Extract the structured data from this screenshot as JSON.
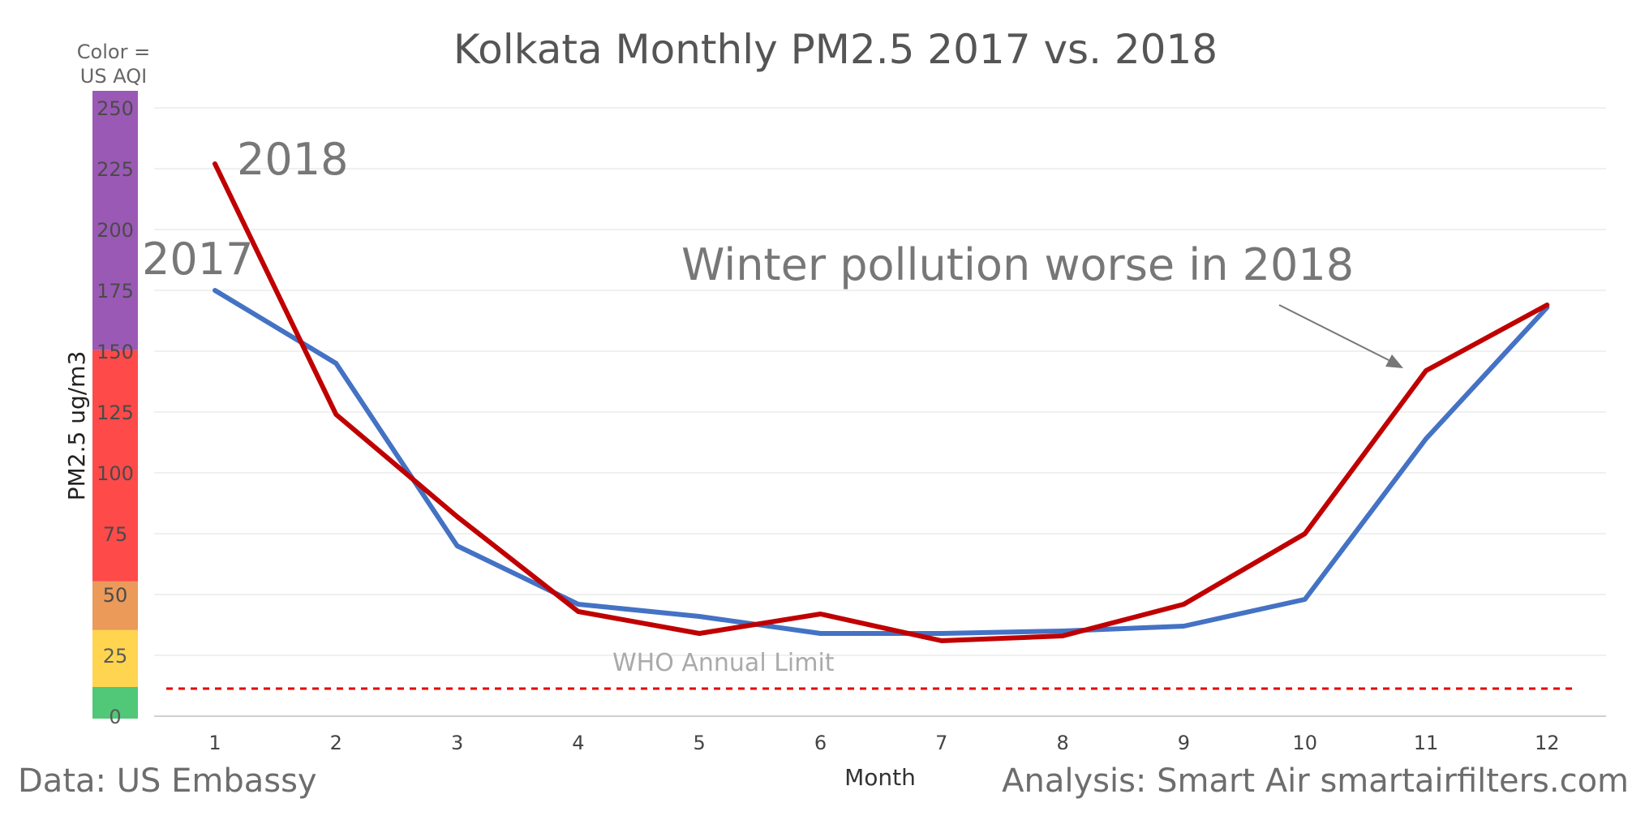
{
  "chart_data": {
    "type": "line",
    "title": "Kolkata Monthly PM2.5 2017 vs. 2018",
    "xlabel": "Month",
    "ylabel": "PM2.5 ug/m3",
    "categories": [
      1,
      2,
      3,
      4,
      5,
      6,
      7,
      8,
      9,
      10,
      11,
      12
    ],
    "ylim": [
      0,
      260
    ],
    "yticks": [
      0,
      25,
      50,
      75,
      100,
      125,
      150,
      175,
      200,
      225,
      250
    ],
    "grid": true,
    "series": [
      {
        "name": "2017",
        "color": "#4472c4",
        "values": [
          175,
          145,
          70,
          46,
          41,
          34,
          34,
          35,
          37,
          48,
          114,
          168
        ]
      },
      {
        "name": "2018",
        "color": "#c00000",
        "values": [
          227,
          124,
          82,
          43,
          34,
          42,
          31,
          33,
          46,
          75,
          142,
          169
        ]
      }
    ],
    "who_limit": {
      "label": "WHO Annual Limit",
      "value": 10,
      "color": "#e60000"
    },
    "aqi_legend": {
      "title_line1": "Color =",
      "title_line2": "US AQI",
      "bands": [
        {
          "from": 0,
          "to": 12,
          "color": "#50c878"
        },
        {
          "from": 12,
          "to": 35.4,
          "color": "#ffd54f"
        },
        {
          "from": 35.4,
          "to": 55.4,
          "color": "#eb9a5a"
        },
        {
          "from": 55.4,
          "to": 150.4,
          "color": "#ff4a4a"
        },
        {
          "from": 150.4,
          "to": 260,
          "color": "#9b59b6"
        }
      ]
    },
    "annotation": {
      "text": "Winter pollution worse in 2018"
    }
  },
  "footer": {
    "source": "Data: US Embassy",
    "credit": "Analysis: Smart Air smartairfilters.com"
  }
}
